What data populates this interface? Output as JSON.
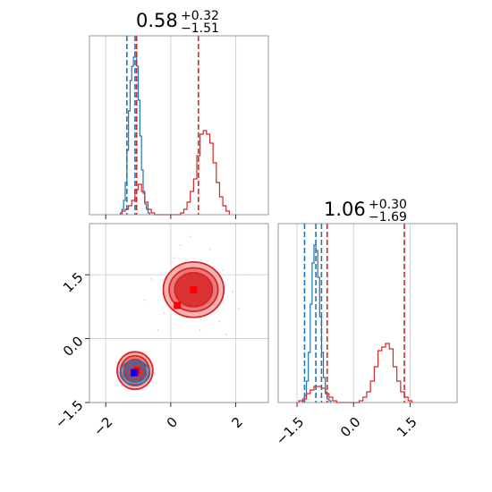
{
  "chart_data": {
    "type": "corner",
    "colors": {
      "blue": "#1f77b4",
      "red": "#d62728",
      "blue_marker": "#0000ff",
      "red_marker": "#ff0000"
    },
    "panels": [
      {
        "id": "hist-x",
        "type": "histogram",
        "title": {
          "value": "0.58",
          "sup": "+0.32",
          "sub": "−1.51"
        },
        "xlim": [
          -2.5,
          3.0
        ],
        "xticks": [
          -2,
          0,
          2
        ],
        "ylim": [
          0,
          1
        ],
        "grid": true,
        "series": [
          {
            "name": "blue",
            "color": "#1f77b4",
            "bins": {
              "start": -1.55,
              "width": 0.05,
              "values": [
                0.01,
                0.03,
                0.08,
                0.18,
                0.36,
                0.58,
                0.75,
                0.83,
                0.88,
                0.91,
                0.83,
                0.64,
                0.44,
                0.25,
                0.12,
                0.06,
                0.03,
                0.01
              ]
            },
            "vlines": [
              -1.35,
              -1.1,
              -1.05
            ]
          },
          {
            "name": "red",
            "color": "#d62728",
            "bins": {
              "start": -1.5,
              "width": 0.1,
              "values": [
                0.02,
                0.03,
                0.05,
                0.08,
                0.14,
                0.17,
                0.13,
                0.07,
                0.03,
                0.01,
                0,
                0,
                0,
                0,
                0,
                0,
                0,
                0,
                0.01,
                0.03,
                0.07,
                0.13,
                0.2,
                0.33,
                0.45,
                0.47,
                0.45,
                0.4,
                0.29,
                0.18,
                0.1,
                0.05,
                0.02
              ]
            },
            "vlines": [
              -1.05,
              0.85
            ]
          }
        ]
      },
      {
        "id": "scatter-xy",
        "type": "contour",
        "xlim": [
          -2.5,
          3.0
        ],
        "ylim": [
          -1.5,
          2.7
        ],
        "xticks": [
          -2,
          0,
          2
        ],
        "yticks": [
          -1.5,
          0.0,
          1.5
        ],
        "xtick_labels": [
          "−2",
          "0",
          "2"
        ],
        "ytick_labels": [
          "−1.5",
          "0.0",
          "1.5"
        ],
        "grid": true,
        "blobs": [
          {
            "name": "red-upper",
            "color": "#d62728",
            "center": [
              0.7,
              1.15
            ],
            "radii": [
              [
                0.93,
                0.65
              ],
              [
                0.75,
                0.51
              ],
              [
                0.58,
                0.4
              ]
            ]
          },
          {
            "name": "red-lower",
            "color": "#d62728",
            "center": [
              -1.1,
              -0.75
            ],
            "radii": [
              [
                0.55,
                0.44
              ],
              [
                0.44,
                0.35
              ],
              [
                0.33,
                0.26
              ]
            ]
          },
          {
            "name": "blue-lower",
            "color": "#1f77b4",
            "center": [
              -1.1,
              -0.8
            ],
            "radii": [
              [
                0.45,
                0.28
              ],
              [
                0.35,
                0.22
              ],
              [
                0.25,
                0.15
              ]
            ]
          }
        ],
        "markers": [
          {
            "name": "red-marker-upper",
            "x": 0.7,
            "y": 1.15,
            "color": "#ff0000"
          },
          {
            "name": "red-marker-mid",
            "x": 0.2,
            "y": 0.78,
            "color": "#ff0000"
          },
          {
            "name": "red-marker-lower",
            "x": -1.05,
            "y": -0.75,
            "color": "#ff0000"
          },
          {
            "name": "blue-marker-lower",
            "x": -1.12,
            "y": -0.8,
            "color": "#0000ff"
          }
        ]
      },
      {
        "id": "hist-y",
        "type": "histogram",
        "title": {
          "value": "1.06",
          "sup": "+0.30",
          "sub": "−1.69"
        },
        "xlim": [
          -2.0,
          2.75
        ],
        "xticks": [
          -1.5,
          0.0,
          1.5
        ],
        "xtick_labels": [
          "−1.5",
          "0.0",
          "1.5"
        ],
        "ylim": [
          0,
          1
        ],
        "grid": true,
        "series": [
          {
            "name": "blue",
            "color": "#1f77b4",
            "bins": {
              "start": -1.35,
              "width": 0.05,
              "values": [
                0.01,
                0.04,
                0.12,
                0.28,
                0.55,
                0.78,
                0.88,
                0.85,
                0.7,
                0.48,
                0.28,
                0.14,
                0.06,
                0.02,
                0.01
              ]
            },
            "vlines": [
              -1.3,
              -1.0,
              -0.85
            ]
          },
          {
            "name": "red",
            "color": "#d62728",
            "bins": {
              "start": -1.45,
              "width": 0.1,
              "values": [
                0.01,
                0.02,
                0.05,
                0.07,
                0.09,
                0.09,
                0.08,
                0.05,
                0.03,
                0.01,
                0,
                0,
                0,
                0,
                0,
                0,
                0.01,
                0.03,
                0.06,
                0.12,
                0.2,
                0.29,
                0.31,
                0.33,
                0.3,
                0.2,
                0.12,
                0.06,
                0.03,
                0.01
              ]
            },
            "vlines": [
              -0.7,
              1.35
            ]
          }
        ]
      }
    ]
  }
}
